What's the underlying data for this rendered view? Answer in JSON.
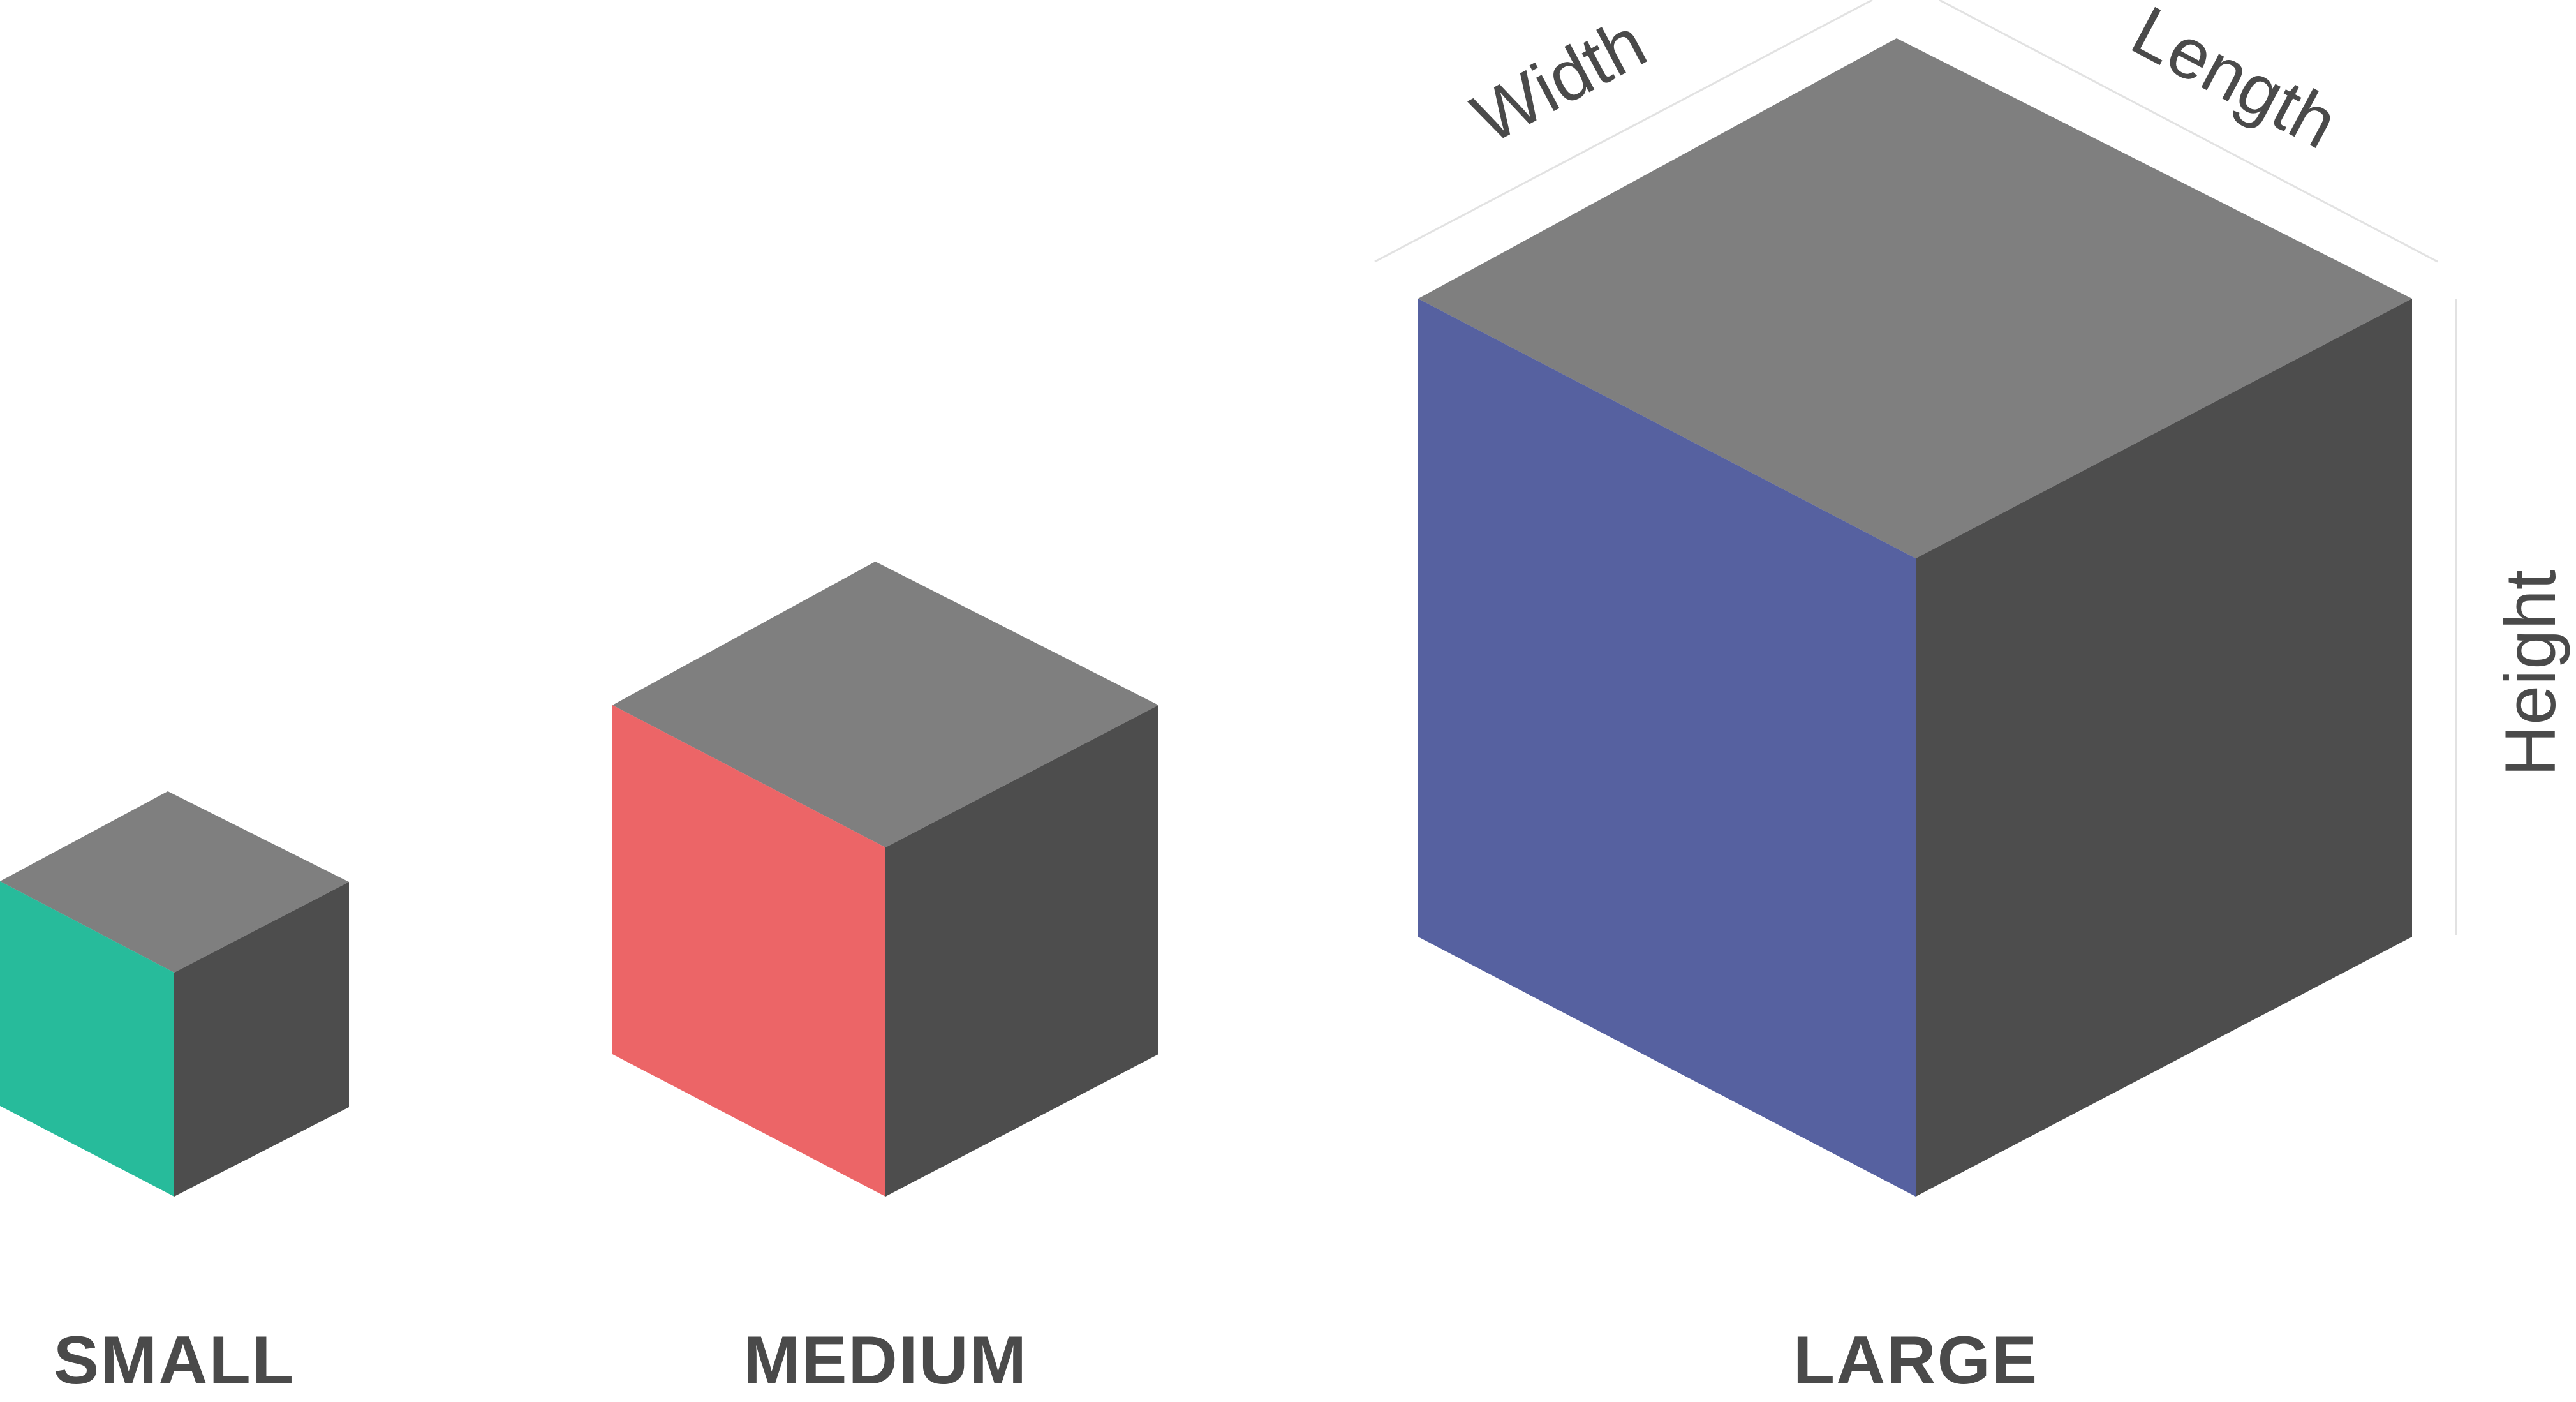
{
  "colors": {
    "top_face": "#7f7f7f",
    "right_face": "#4d4d4d",
    "small_front": "#27bb9b",
    "medium_front": "#ec6567",
    "large_front": "#5661a0",
    "label_text": "#4a4a4a",
    "dimension_line": "#e2e2e2",
    "background": "#ffffff"
  },
  "cubes": {
    "small": {
      "label": "SMALL",
      "front_color": "#27bb9b"
    },
    "medium": {
      "label": "MEDIUM",
      "front_color": "#ec6567"
    },
    "large": {
      "label": "LARGE",
      "front_color": "#5661a0"
    }
  },
  "dimensions": {
    "width_label": "Width",
    "length_label": "Length",
    "height_label": "Height"
  }
}
